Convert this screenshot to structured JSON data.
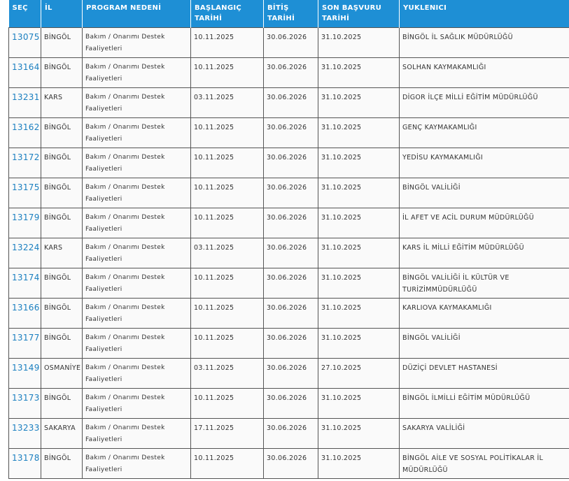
{
  "table": {
    "headers": [
      "SEÇ",
      "İL",
      "PROGRAM NEDENİ",
      "BAŞLANGIÇ TARİHİ",
      "BİTİŞ TARİHİ",
      "SON BAŞVURU TARİHİ",
      "YUKLENICI"
    ],
    "rows": [
      [
        "13075",
        "BİNGÖL",
        "Bakım / Onarımı Destek Faaliyetleri",
        "10.11.2025",
        "30.06.2026",
        "31.10.2025",
        "BİNGÖL İL SAĞLIK MÜDÜRLÜĞÜ"
      ],
      [
        "13164",
        "BİNGÖL",
        "Bakım / Onarımı Destek Faaliyetleri",
        "10.11.2025",
        "30.06.2026",
        "31.10.2025",
        "SOLHAN KAYMAKAMLIĞI"
      ],
      [
        "13231",
        "KARS",
        "Bakım / Onarımı Destek Faaliyetleri",
        "03.11.2025",
        "30.06.2026",
        "31.10.2025",
        "DİGOR İLÇE MİLLİ EĞİTİM MÜDÜRLÜĞÜ"
      ],
      [
        "13162",
        "BİNGÖL",
        "Bakım / Onarımı Destek Faaliyetleri",
        "10.11.2025",
        "30.06.2026",
        "31.10.2025",
        "GENÇ KAYMAKAMLIĞI"
      ],
      [
        "13172",
        "BİNGÖL",
        "Bakım / Onarımı Destek Faaliyetleri",
        "10.11.2025",
        "30.06.2026",
        "31.10.2025",
        "YEDİSU KAYMAKAMLIĞI"
      ],
      [
        "13175",
        "BİNGÖL",
        "Bakım / Onarımı Destek Faaliyetleri",
        "10.11.2025",
        "30.06.2026",
        "31.10.2025",
        "BİNGÖL VALİLİĞİ"
      ],
      [
        "13179",
        "BİNGÖL",
        "Bakım / Onarımı Destek Faaliyetleri",
        "10.11.2025",
        "30.06.2026",
        "31.10.2025",
        "İL AFET VE ACİL DURUM MÜDÜRLÜĞÜ"
      ],
      [
        "13224",
        "KARS",
        "Bakım / Onarımı Destek Faaliyetleri",
        "03.11.2025",
        "30.06.2026",
        "31.10.2025",
        "KARS İL MİLLİ EĞİTİM MÜDÜRLÜĞÜ"
      ],
      [
        "13174",
        "BİNGÖL",
        "Bakım / Onarımı Destek Faaliyetleri",
        "10.11.2025",
        "30.06.2026",
        "31.10.2025",
        "BİNGÖL VALİLİĞİ İL KÜLTÜR VE TURİZİMMÜDÜRLÜĞÜ"
      ],
      [
        "13166",
        "BİNGÖL",
        "Bakım / Onarımı Destek Faaliyetleri",
        "10.11.2025",
        "30.06.2026",
        "31.10.2025",
        "KARLIOVA KAYMAKAMLIĞI"
      ],
      [
        "13177",
        "BİNGÖL",
        "Bakım / Onarımı Destek Faaliyetleri",
        "10.11.2025",
        "30.06.2026",
        "31.10.2025",
        "BİNGÖL VALİLİĞİ"
      ],
      [
        "13149",
        "OSMANİYE",
        "Bakım / Onarımı Destek Faaliyetleri",
        "03.11.2025",
        "30.06.2026",
        "27.10.2025",
        "DÜZİÇİ DEVLET HASTANESİ"
      ],
      [
        "13173",
        "BİNGÖL",
        "Bakım / Onarımı Destek Faaliyetleri",
        "10.11.2025",
        "30.06.2026",
        "31.10.2025",
        "BİNGÖL İLMİLLİ EĞİTİM MÜDÜRLÜĞÜ"
      ],
      [
        "13233",
        "SAKARYA",
        "Bakım / Onarımı Destek Faaliyetleri",
        "17.11.2025",
        "30.06.2026",
        "31.10.2025",
        "SAKARYA VALİLİĞİ"
      ],
      [
        "13178",
        "BİNGÖL",
        "Bakım / Onarımı Destek Faaliyetleri",
        "10.11.2025",
        "30.06.2026",
        "31.10.2025",
        "BİNGÖL AİLE VE SOSYAL POLİTİKALAR İL MÜDÜRLÜĞÜ"
      ]
    ]
  }
}
